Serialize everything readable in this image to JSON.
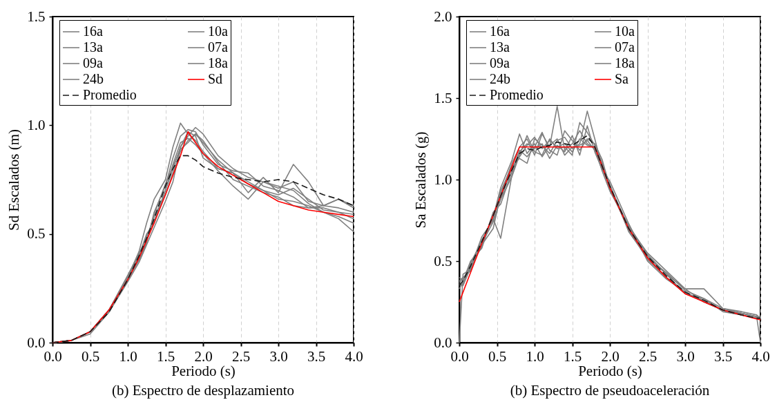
{
  "chart_data": [
    {
      "type": "line",
      "title": "(b)  Espectro de desplazamiento",
      "xlabel": "Periodo (s)",
      "ylabel": "Sd Escalados (m)",
      "grid": "x",
      "legend": "top",
      "x": [
        0,
        0.25,
        0.5,
        0.75,
        1.0,
        1.15,
        1.25,
        1.35,
        1.5,
        1.6,
        1.7,
        1.8,
        1.9,
        2.0,
        2.2,
        2.4,
        2.6,
        2.8,
        3.0,
        3.2,
        3.4,
        3.6,
        3.8,
        4.0
      ],
      "xlim": [
        0,
        4
      ],
      "xticks": [
        {
          "value": 0,
          "label": "0.0"
        },
        {
          "value": 0.5,
          "label": "0.5"
        },
        {
          "value": 1,
          "label": "1.0"
        },
        {
          "value": 1.5,
          "label": "1.5"
        },
        {
          "value": 2,
          "label": "2.0"
        },
        {
          "value": 2.5,
          "label": "2.5"
        },
        {
          "value": 3,
          "label": "3.0"
        },
        {
          "value": 3.5,
          "label": "3.5"
        },
        {
          "value": 4,
          "label": "4.0"
        }
      ],
      "ylim": [
        0,
        1.5
      ],
      "yticks": [
        {
          "value": 0,
          "label": "0.0"
        },
        {
          "value": 0.5,
          "label": "0.5"
        },
        {
          "value": 1,
          "label": "1.0"
        },
        {
          "value": 1.5,
          "label": "1.5"
        }
      ],
      "series": [
        {
          "name": "16a",
          "color": "#808080",
          "values": [
            0,
            0.01,
            0.05,
            0.15,
            0.3,
            0.42,
            0.55,
            0.66,
            0.75,
            0.9,
            1.01,
            0.96,
            0.93,
            0.88,
            0.8,
            0.78,
            0.74,
            0.7,
            0.66,
            0.65,
            0.63,
            0.6,
            0.58,
            0.55
          ]
        },
        {
          "name": "10a",
          "color": "#808080",
          "values": [
            0,
            0.01,
            0.05,
            0.14,
            0.29,
            0.38,
            0.46,
            0.6,
            0.72,
            0.85,
            0.95,
            0.98,
            0.97,
            0.91,
            0.82,
            0.79,
            0.78,
            0.72,
            0.7,
            0.67,
            0.62,
            0.62,
            0.6,
            0.59
          ]
        },
        {
          "name": "13a",
          "color": "#808080",
          "values": [
            0,
            0.01,
            0.05,
            0.15,
            0.3,
            0.4,
            0.5,
            0.55,
            0.7,
            0.8,
            0.9,
            0.95,
            0.99,
            0.96,
            0.86,
            0.8,
            0.76,
            0.74,
            0.71,
            0.74,
            0.65,
            0.63,
            0.62,
            0.6
          ]
        },
        {
          "name": "07a",
          "color": "#808080",
          "values": [
            0,
            0.01,
            0.05,
            0.15,
            0.31,
            0.41,
            0.48,
            0.58,
            0.68,
            0.78,
            0.88,
            0.93,
            0.96,
            0.92,
            0.84,
            0.78,
            0.69,
            0.76,
            0.69,
            0.82,
            0.74,
            0.63,
            0.66,
            0.63
          ]
        },
        {
          "name": "09a",
          "color": "#808080",
          "values": [
            0,
            0.01,
            0.04,
            0.14,
            0.28,
            0.37,
            0.45,
            0.53,
            0.65,
            0.74,
            0.9,
            0.97,
            0.95,
            0.85,
            0.8,
            0.78,
            0.73,
            0.7,
            0.68,
            0.71,
            0.66,
            0.61,
            0.6,
            0.57
          ]
        },
        {
          "name": "18a",
          "color": "#808080",
          "values": [
            0,
            0.01,
            0.05,
            0.15,
            0.3,
            0.4,
            0.49,
            0.56,
            0.7,
            0.82,
            0.92,
            0.94,
            0.91,
            0.87,
            0.79,
            0.72,
            0.66,
            0.74,
            0.72,
            0.7,
            0.64,
            0.6,
            0.57,
            0.51
          ]
        },
        {
          "name": "24b",
          "color": "#808080",
          "values": [
            0,
            0.01,
            0.05,
            0.15,
            0.29,
            0.39,
            0.47,
            0.59,
            0.73,
            0.81,
            0.89,
            0.92,
            0.96,
            0.93,
            0.83,
            0.75,
            0.72,
            0.69,
            0.67,
            0.63,
            0.62,
            0.63,
            0.66,
            0.62
          ]
        },
        {
          "name": "Sd",
          "color": "#ff0000",
          "values": [
            0,
            0.01,
            0.05,
            0.15,
            0.29,
            0.39,
            0.47,
            0.55,
            0.68,
            0.77,
            0.86,
            0.97,
            0.92,
            0.87,
            0.81,
            0.77,
            0.73,
            0.69,
            0.65,
            0.63,
            0.61,
            0.6,
            0.59,
            0.58
          ]
        },
        {
          "name": "Promedio",
          "color": "#1a1a1a",
          "line_style": "dashed",
          "values": [
            0,
            0.01,
            0.05,
            0.14,
            0.29,
            0.4,
            0.48,
            0.57,
            0.72,
            0.8,
            0.86,
            0.86,
            0.84,
            0.81,
            0.78,
            0.76,
            0.75,
            0.74,
            0.75,
            0.74,
            0.71,
            0.68,
            0.66,
            0.63
          ]
        }
      ]
    },
    {
      "type": "line",
      "title": "(b)  Espectro de pseudoaceleración",
      "xlabel": "Periodo (s)",
      "ylabel": "Sa Escalados (g)",
      "grid": "x",
      "legend": "top",
      "x": [
        0,
        0.05,
        0.15,
        0.3,
        0.45,
        0.55,
        0.7,
        0.8,
        0.9,
        1.0,
        1.1,
        1.2,
        1.3,
        1.4,
        1.5,
        1.6,
        1.7,
        1.8,
        1.9,
        2.0,
        2.25,
        2.5,
        2.75,
        3.0,
        3.25,
        3.5,
        3.75,
        3.95,
        4.0
      ],
      "xlim": [
        0,
        4
      ],
      "xticks": [
        {
          "value": 0,
          "label": "0.0"
        },
        {
          "value": 0.5,
          "label": "0.5"
        },
        {
          "value": 1,
          "label": "1.0"
        },
        {
          "value": 1.5,
          "label": "1.5"
        },
        {
          "value": 2,
          "label": "2.0"
        },
        {
          "value": 2.5,
          "label": "2.5"
        },
        {
          "value": 3,
          "label": "3.0"
        },
        {
          "value": 3.5,
          "label": "3.5"
        },
        {
          "value": 4,
          "label": "4.0"
        }
      ],
      "ylim": [
        0,
        2
      ],
      "yticks": [
        {
          "value": 0,
          "label": "0.0"
        },
        {
          "value": 0.5,
          "label": "0.5"
        },
        {
          "value": 1,
          "label": "1.0"
        },
        {
          "value": 1.5,
          "label": "1.5"
        },
        {
          "value": 2,
          "label": "2.0"
        }
      ],
      "series": [
        {
          "name": "16a",
          "color": "#808080",
          "values": [
            0,
            0.42,
            0.45,
            0.6,
            0.7,
            0.91,
            1.1,
            1.2,
            1.25,
            1.15,
            1.28,
            1.2,
            1.45,
            1.18,
            1.22,
            1.3,
            1.22,
            1.19,
            1.05,
            0.93,
            0.72,
            0.54,
            0.42,
            0.33,
            0.25,
            0.2,
            0.18,
            0.16,
            0
          ]
        },
        {
          "name": "10a",
          "color": "#808080",
          "values": [
            0.4,
            0.38,
            0.5,
            0.58,
            0.79,
            0.88,
            1.02,
            1.15,
            1.27,
            1.17,
            1.15,
            1.25,
            1.19,
            1.2,
            1.15,
            1.35,
            1.29,
            1.21,
            1.1,
            0.97,
            0.68,
            0.52,
            0.43,
            0.32,
            0.27,
            0.21,
            0.19,
            0.17,
            0.15
          ]
        },
        {
          "name": "13a",
          "color": "#808080",
          "values": [
            0.36,
            0.35,
            0.46,
            0.65,
            0.75,
            0.93,
            1.08,
            1.13,
            1.1,
            1.25,
            1.21,
            1.16,
            1.24,
            1.26,
            1.19,
            1.22,
            1.42,
            1.25,
            1.07,
            0.96,
            0.71,
            0.55,
            0.44,
            0.33,
            0.33,
            0.21,
            0.18,
            0.16,
            0.15
          ]
        },
        {
          "name": "07a",
          "color": "#808080",
          "values": [
            0.33,
            0.37,
            0.48,
            0.59,
            0.8,
            0.85,
            1.05,
            1.18,
            1.14,
            1.2,
            1.29,
            1.18,
            1.15,
            1.3,
            1.24,
            1.18,
            1.25,
            1.22,
            1.12,
            0.95,
            0.69,
            0.51,
            0.4,
            0.3,
            0.27,
            0.19,
            0.17,
            0.15,
            0.14
          ]
        },
        {
          "name": "09a",
          "color": "#808080",
          "values": [
            0.38,
            0.4,
            0.44,
            0.63,
            0.76,
            0.64,
            1.03,
            1.17,
            1.22,
            1.19,
            1.22,
            1.13,
            1.21,
            1.17,
            1.27,
            1.15,
            1.33,
            1.17,
            1.06,
            0.99,
            0.73,
            0.5,
            0.39,
            0.31,
            0.25,
            0.2,
            0.17,
            0.15,
            0.14
          ]
        },
        {
          "name": "18a",
          "color": "#808080",
          "values": [
            0.35,
            0.36,
            0.49,
            0.62,
            0.77,
            0.95,
            1.12,
            1.28,
            1.16,
            1.22,
            1.14,
            1.21,
            1.25,
            1.15,
            1.2,
            1.21,
            1.24,
            1.18,
            1.09,
            0.94,
            0.7,
            0.53,
            0.42,
            0.3,
            0.26,
            0.2,
            0.18,
            0.16,
            0.15
          ]
        },
        {
          "name": "24b",
          "color": "#808080",
          "values": [
            0.37,
            0.39,
            0.45,
            0.61,
            0.74,
            0.88,
            1.07,
            1.14,
            1.21,
            1.26,
            1.19,
            1.24,
            1.2,
            1.22,
            1.17,
            1.25,
            1.21,
            1.2,
            1.07,
            0.95,
            0.7,
            0.52,
            0.4,
            0.31,
            0.25,
            0.2,
            0.17,
            0.15,
            0.15
          ]
        },
        {
          "name": "Sa",
          "color": "#ff0000",
          "values": [
            0.25,
            0.31,
            0.43,
            0.61,
            0.78,
            0.9,
            1.08,
            1.2,
            1.2,
            1.2,
            1.2,
            1.2,
            1.2,
            1.2,
            1.2,
            1.2,
            1.2,
            1.2,
            1.08,
            0.95,
            0.7,
            0.52,
            0.4,
            0.3,
            0.25,
            0.2,
            0.17,
            0.145,
            0.14
          ]
        },
        {
          "name": "Promedio",
          "color": "#1a1a1a",
          "line_style": "dashed",
          "values": [
            0.35,
            0.38,
            0.47,
            0.62,
            0.78,
            0.9,
            1.06,
            1.16,
            1.19,
            1.18,
            1.2,
            1.21,
            1.23,
            1.22,
            1.21,
            1.24,
            1.27,
            1.2,
            1.08,
            0.96,
            0.7,
            0.53,
            0.41,
            0.31,
            0.26,
            0.2,
            0.17,
            0.15,
            0.15
          ]
        }
      ]
    }
  ]
}
